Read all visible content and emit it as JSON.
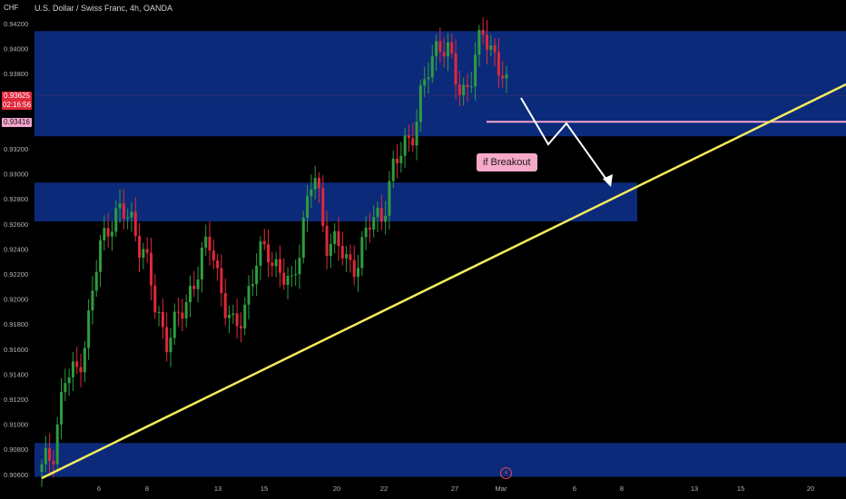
{
  "header": {
    "currency": "CHF",
    "title": "U.S. Dollar / Swiss Franc, 4h, OANDA"
  },
  "price_axis": {
    "ticks": [
      "0.94200",
      "0.94000",
      "0.93800",
      "0.93600",
      "0.93400",
      "0.93200",
      "0.93000",
      "0.92800",
      "0.92600",
      "0.92400",
      "0.92200",
      "0.92000",
      "0.91800",
      "0.91600",
      "0.91400",
      "0.91200",
      "0.91000",
      "0.90800",
      "0.90600"
    ],
    "current_price": "0.93625",
    "countdown": "02:16:56",
    "pink_level": "0.93416"
  },
  "time_axis": {
    "labels": [
      "6",
      "8",
      "13",
      "15",
      "20",
      "22",
      "27",
      "Mar",
      "6",
      "8",
      "13",
      "15",
      "20"
    ]
  },
  "annotation": {
    "bubble_text": "if Breakout"
  },
  "colors": {
    "background": "#000000",
    "zone": "#0c2a7a",
    "trendline": "#f5ec5c",
    "level_line": "#f4a6cf",
    "bull": "#2e9c3e",
    "bear": "#e0283a",
    "arrow": "#ffffff",
    "bubble": "#f6a9c8"
  },
  "icons": {
    "event": "lightning-bolt-icon"
  },
  "chart_data": {
    "type": "candlestick",
    "symbol": "USD/CHF",
    "interval": "4h",
    "ylim": [
      0.9055,
      0.9428
    ],
    "zones": [
      {
        "from": 0.933,
        "to": 0.9414
      },
      {
        "from": 0.9262,
        "to": 0.9293
      },
      {
        "from": 0.9058,
        "to": 0.9085
      }
    ],
    "level_line": 0.93416,
    "current_price": 0.93625,
    "trendline": {
      "start_price": 0.906,
      "slope": "rising"
    },
    "closes_sampled": [
      0.9062,
      0.908,
      0.9135,
      0.914,
      0.9175,
      0.9235,
      0.9265,
      0.9268,
      0.9262,
      0.9238,
      0.9193,
      0.917,
      0.918,
      0.9205,
      0.923,
      0.9245,
      0.92,
      0.917,
      0.92,
      0.923,
      0.924,
      0.9222,
      0.9205,
      0.926,
      0.93,
      0.925,
      0.9245,
      0.9225,
      0.9235,
      0.926,
      0.927,
      0.93,
      0.9325,
      0.934,
      0.938,
      0.941,
      0.939,
      0.9365,
      0.938,
      0.9415,
      0.9395,
      0.9365
    ]
  }
}
